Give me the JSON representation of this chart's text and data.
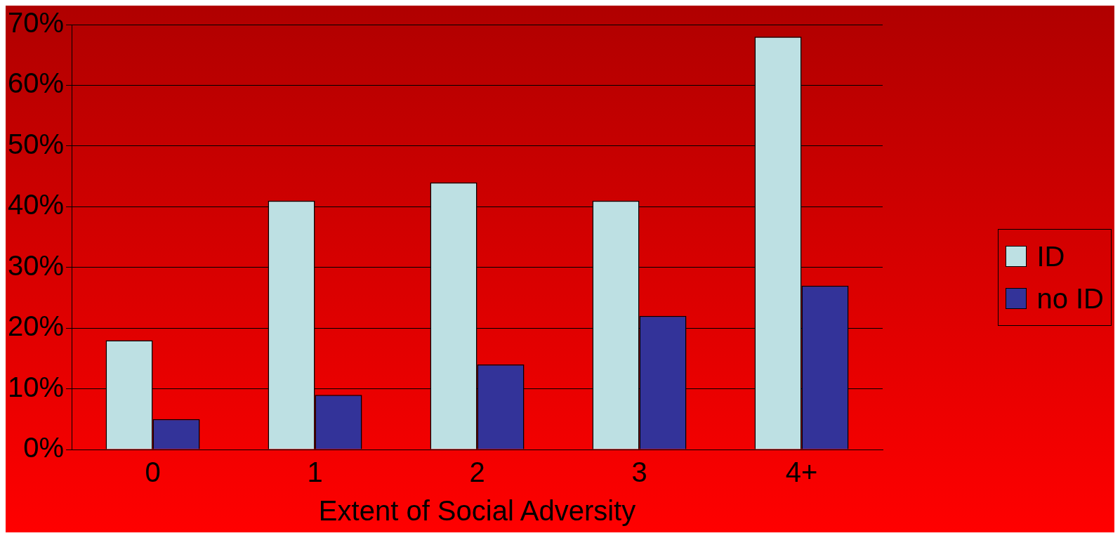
{
  "chart_data": {
    "type": "bar",
    "xlabel": "Extent of Social Adversity",
    "categories": [
      "0",
      "1",
      "2",
      "3",
      "4+"
    ],
    "series": [
      {
        "name": "ID",
        "color": "#bde0e3",
        "values": [
          18,
          41,
          44,
          41,
          68
        ]
      },
      {
        "name": "no ID",
        "color": "#333399",
        "values": [
          5,
          9,
          14,
          22,
          27
        ]
      }
    ],
    "ylim": [
      0,
      70
    ],
    "yticks": [
      {
        "value": 0,
        "label": "0%"
      },
      {
        "value": 10,
        "label": "10%"
      },
      {
        "value": 20,
        "label": "20%"
      },
      {
        "value": 30,
        "label": "30%"
      },
      {
        "value": 40,
        "label": "40%"
      },
      {
        "value": 50,
        "label": "50%"
      },
      {
        "value": 60,
        "label": "60%"
      },
      {
        "value": 70,
        "label": "70%"
      }
    ],
    "grid": "y",
    "legend": "right"
  }
}
